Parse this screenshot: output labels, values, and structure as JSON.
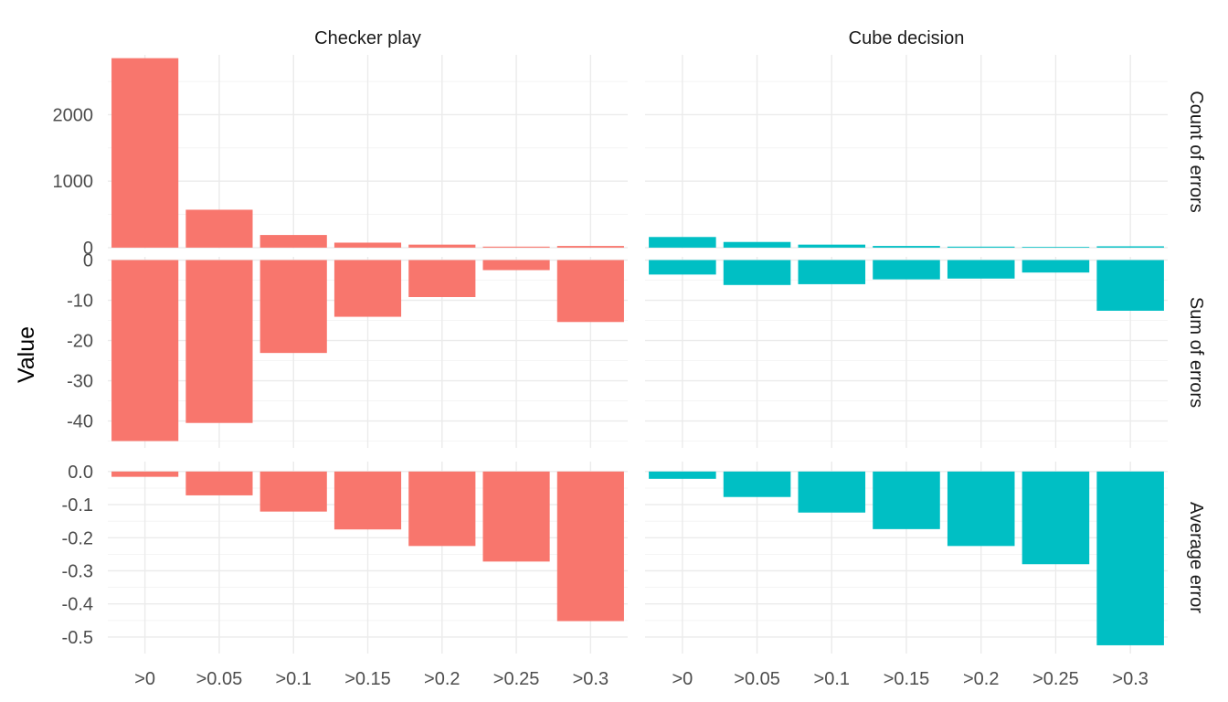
{
  "chart_data": {
    "type": "bar",
    "ylabel": "Value",
    "categories": [
      ">0",
      ">0.05",
      ">0.1",
      ">0.15",
      ">0.2",
      ">0.25",
      ">0.3"
    ],
    "columns": [
      "Checker play",
      "Cube decision"
    ],
    "rows": [
      {
        "label": "Count of errors",
        "ylim": [
          -15,
          2900
        ],
        "ticks": [
          0,
          1000,
          2000
        ],
        "tick_labels": [
          "0",
          "1000",
          "2000"
        ],
        "values": {
          "Checker play": [
            2850,
            570,
            190,
            75,
            45,
            15,
            25
          ],
          "Cube decision": [
            160,
            85,
            45,
            25,
            15,
            10,
            20
          ]
        }
      },
      {
        "label": "Sum of errors",
        "ylim": [
          -46.7,
          0.8
        ],
        "ticks": [
          0,
          -10,
          -20,
          -30,
          -40
        ],
        "tick_labels": [
          "0",
          "-10",
          "-20",
          "-30",
          "-40"
        ],
        "values": {
          "Checker play": [
            -45,
            -40.5,
            -23.1,
            -14.1,
            -9.2,
            -2.5,
            -15.4
          ],
          "Cube decision": [
            -3.6,
            -6.2,
            -6.0,
            -4.8,
            -4.6,
            -3.1,
            -12.6
          ]
        }
      },
      {
        "label": "Average error",
        "ylim": [
          -0.55,
          0.03
        ],
        "ticks": [
          0,
          -0.1,
          -0.2,
          -0.3,
          -0.4,
          -0.5
        ],
        "tick_labels": [
          "0.0",
          "-0.1",
          "-0.2",
          "-0.3",
          "-0.4",
          "-0.5"
        ],
        "values": {
          "Checker play": [
            -0.016,
            -0.072,
            -0.121,
            -0.175,
            -0.225,
            -0.272,
            -0.452
          ],
          "Cube decision": [
            -0.022,
            -0.077,
            -0.124,
            -0.174,
            -0.225,
            -0.28,
            -0.525
          ]
        }
      }
    ],
    "colors": {
      "Checker play": "#F8766D",
      "Cube decision": "#00BFC4"
    },
    "legend": "none",
    "grid": true
  }
}
